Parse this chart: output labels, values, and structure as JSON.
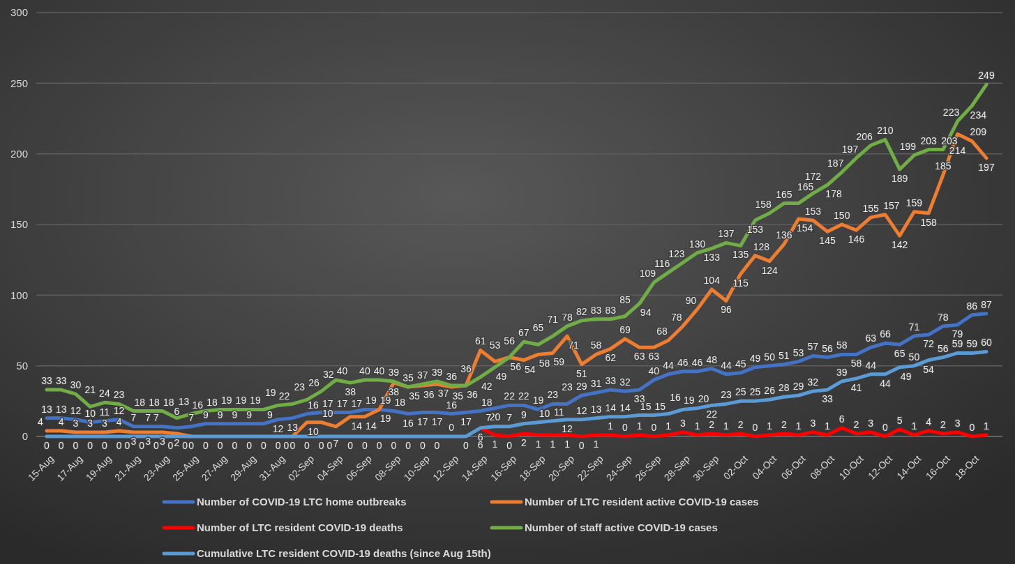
{
  "chart_data": {
    "type": "line",
    "categories": [
      "15-Aug",
      null,
      "17-Aug",
      null,
      "19-Aug",
      null,
      "21-Aug",
      null,
      "23-Aug",
      null,
      "25-Aug",
      null,
      "27-Aug",
      null,
      "29-Aug",
      null,
      "31-Aug",
      null,
      "02-Sep",
      null,
      "04-Sep",
      null,
      "06-Sep",
      null,
      "08-Sep",
      null,
      "10-Sep",
      null,
      "12-Sep",
      null,
      "14-Sep",
      null,
      "16-Sep",
      null,
      "18-Sep",
      null,
      "20-Sep",
      null,
      "22-Sep",
      null,
      "24-Sep",
      null,
      "26-Sep",
      null,
      "28-Sep",
      null,
      "30-Sep",
      null,
      "02-Oct",
      null,
      "04-Oct",
      null,
      "06-Oct",
      null,
      "08-Oct",
      null,
      "10-Oct",
      null,
      "12-Oct",
      null,
      "14-Oct",
      null,
      "16-Oct",
      null,
      "18-Oct",
      null
    ],
    "series": [
      {
        "name": "Number of COVID-19 LTC home outbreaks",
        "color": "#4472c4",
        "values": [
          13,
          13,
          12,
          10,
          11,
          12,
          7,
          7,
          7,
          6,
          7,
          9,
          9,
          9,
          9,
          9,
          12,
          13,
          16,
          17,
          17,
          17,
          19,
          19,
          18,
          16,
          17,
          17,
          16,
          17,
          18,
          20,
          22,
          22,
          19,
          23,
          23,
          29,
          31,
          33,
          32,
          33,
          40,
          44,
          46,
          46,
          48,
          44,
          45,
          49,
          50,
          51,
          53,
          57,
          56,
          58,
          58,
          63,
          66,
          65,
          71,
          72,
          78,
          79,
          86,
          87
        ]
      },
      {
        "name": "Number of LTC resident active COVID-19 cases",
        "color": "#ed7d31",
        "values": [
          4,
          4,
          3,
          3,
          3,
          4,
          3,
          3,
          3,
          2,
          0,
          null,
          null,
          null,
          null,
          null,
          null,
          0,
          10,
          10,
          7,
          14,
          14,
          19,
          38,
          35,
          36,
          37,
          35,
          36,
          61,
          53,
          56,
          54,
          58,
          59,
          71,
          51,
          58,
          62,
          69,
          63,
          63,
          68,
          78,
          90,
          104,
          96,
          115,
          128,
          124,
          136,
          154,
          153,
          145,
          150,
          146,
          155,
          157,
          142,
          159,
          158,
          185,
          214,
          209,
          197
        ]
      },
      {
        "name": "Number of LTC resident COVID-19 deaths",
        "color": "#ff0000",
        "values": [
          null,
          null,
          null,
          null,
          null,
          null,
          null,
          null,
          null,
          null,
          null,
          null,
          null,
          null,
          null,
          null,
          null,
          null,
          null,
          null,
          null,
          null,
          null,
          null,
          null,
          null,
          null,
          null,
          null,
          null,
          6,
          1,
          0,
          2,
          1,
          1,
          1,
          0,
          1,
          1,
          0,
          1,
          0,
          1,
          3,
          1,
          2,
          1,
          2,
          0,
          1,
          2,
          1,
          3,
          1,
          6,
          2,
          3,
          0,
          5,
          1,
          4,
          2,
          3,
          0,
          1
        ]
      },
      {
        "name": "Number of staff active COVID-19 cases",
        "color": "#70ad47",
        "values": [
          33,
          33,
          30,
          21,
          24,
          23,
          18,
          18,
          18,
          13,
          16,
          18,
          19,
          19,
          19,
          19,
          22,
          23,
          26,
          32,
          40,
          38,
          40,
          40,
          39,
          35,
          37,
          39,
          36,
          36,
          42,
          49,
          56,
          67,
          65,
          71,
          78,
          82,
          83,
          83,
          85,
          94,
          109,
          116,
          123,
          130,
          133,
          137,
          135,
          153,
          158,
          165,
          165,
          172,
          178,
          187,
          197,
          206,
          210,
          189,
          199,
          203,
          203,
          223,
          234,
          249
        ]
      },
      {
        "name": "Cumulative LTC resident COVID-19 deaths (since Aug 15th)",
        "color": "#5b9bd5",
        "values": [
          0,
          0,
          0,
          0,
          0,
          0,
          0,
          0,
          0,
          0,
          0,
          0,
          0,
          0,
          0,
          0,
          0,
          0,
          0,
          0,
          0,
          0,
          0,
          0,
          0,
          0,
          0,
          0,
          0,
          0,
          6,
          7,
          7,
          9,
          10,
          11,
          12,
          12,
          13,
          14,
          14,
          15,
          15,
          16,
          19,
          20,
          22,
          23,
          25,
          25,
          26,
          28,
          29,
          32,
          33,
          39,
          41,
          44,
          44,
          49,
          50,
          54,
          56,
          59,
          59,
          60
        ]
      }
    ],
    "ylim": [
      0,
      300
    ],
    "yticks": [
      0,
      50,
      100,
      150,
      200,
      250,
      300
    ],
    "grid": "y",
    "legend": "bottom",
    "data_labels": true,
    "marker": "none",
    "line_style": "solid"
  }
}
